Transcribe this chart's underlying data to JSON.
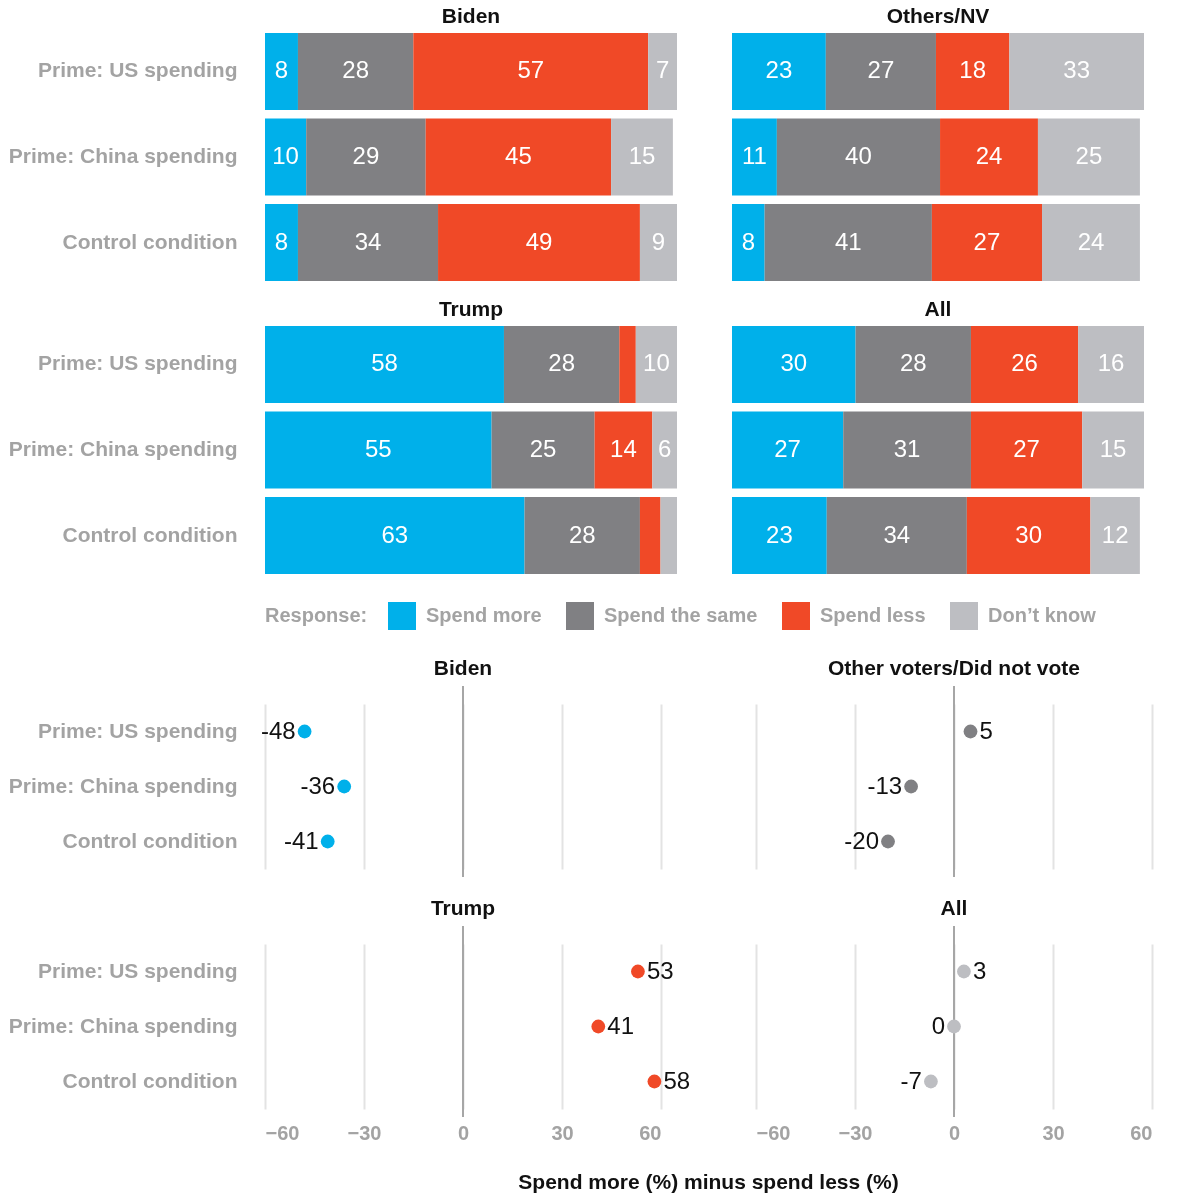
{
  "chart_data": [
    {
      "type": "bar",
      "title": "Biden",
      "orientation": "horizontal",
      "stacked": true,
      "categories": [
        "Prime: US spending",
        "Prime: China spending",
        "Control condition"
      ],
      "xlim": [
        0,
        100
      ],
      "tick_labels": "y",
      "legend": "bottom",
      "legend_title": "Response:",
      "data_labels": true,
      "series": [
        {
          "name": "Spend more",
          "color": "#00b0ea",
          "values": [
            8,
            10,
            8
          ]
        },
        {
          "name": "Spend the same",
          "color": "#808083",
          "values": [
            28,
            29,
            34
          ]
        },
        {
          "name": "Spend less",
          "color": "#f04927",
          "values": [
            57,
            45,
            49
          ]
        },
        {
          "name": "Don’t know",
          "color": "#bdbec2",
          "values": [
            7,
            15,
            9
          ]
        }
      ]
    },
    {
      "type": "bar",
      "title": "Others/NV",
      "orientation": "horizontal",
      "stacked": true,
      "categories": [
        "Prime: US spending",
        "Prime: China spending",
        "Control condition"
      ],
      "xlim": [
        0,
        101
      ],
      "tick_labels": false,
      "data_labels": true,
      "series": [
        {
          "name": "Spend more",
          "color": "#00b0ea",
          "values": [
            23,
            11,
            8
          ]
        },
        {
          "name": "Spend the same",
          "color": "#808083",
          "values": [
            27,
            40,
            41
          ]
        },
        {
          "name": "Spend less",
          "color": "#f04927",
          "values": [
            18,
            24,
            27
          ]
        },
        {
          "name": "Don’t know",
          "color": "#bdbec2",
          "values": [
            33,
            25,
            24
          ]
        }
      ]
    },
    {
      "type": "bar",
      "title": "Trump",
      "orientation": "horizontal",
      "stacked": true,
      "categories": [
        "Prime: US spending",
        "Prime: China spending",
        "Control condition"
      ],
      "xlim": [
        0,
        100
      ],
      "tick_labels": "y",
      "series": [
        {
          "name": "Spend more",
          "color": "#00b0ea",
          "values": [
            58,
            55,
            63
          ],
          "value_labels": [
            "58",
            "55",
            "63"
          ]
        },
        {
          "name": "Spend the same",
          "color": "#808083",
          "values": [
            28,
            25,
            28
          ],
          "value_labels": [
            "28",
            "25",
            "28"
          ]
        },
        {
          "name": "Spend less",
          "color": "#f04927",
          "values": [
            4,
            14,
            5
          ],
          "value_labels": [
            null,
            "14",
            null
          ]
        },
        {
          "name": "Don’t know",
          "color": "#bdbec2",
          "values": [
            10,
            6,
            4
          ],
          "value_labels": [
            "10",
            "6",
            null
          ]
        }
      ]
    },
    {
      "type": "bar",
      "title": "All",
      "orientation": "horizontal",
      "stacked": true,
      "categories": [
        "Prime: US spending",
        "Prime: China spending",
        "Control condition"
      ],
      "xlim": [
        0,
        100
      ],
      "tick_labels": false,
      "data_labels": true,
      "series": [
        {
          "name": "Spend more",
          "color": "#00b0ea",
          "values": [
            30,
            27,
            23
          ]
        },
        {
          "name": "Spend the same",
          "color": "#808083",
          "values": [
            28,
            31,
            34
          ]
        },
        {
          "name": "Spend less",
          "color": "#f04927",
          "values": [
            26,
            27,
            30
          ]
        },
        {
          "name": "Don’t know",
          "color": "#bdbec2",
          "values": [
            16,
            15,
            12
          ]
        }
      ]
    },
    {
      "type": "scatter",
      "title": "Biden",
      "orientation": "horizontal",
      "categories": [
        "Prime: US spending",
        "Prime: China spending",
        "Control condition"
      ],
      "values": [
        -48,
        -36,
        -41
      ],
      "color": "#00b0ea",
      "xlim": [
        -60,
        60
      ],
      "xticks": [
        -60,
        -30,
        0,
        30,
        60
      ],
      "grid": "x",
      "tick_labels": "y",
      "marker": "circle",
      "data_labels": true,
      "ref_lines": [
        {
          "axis": "x",
          "value": 0,
          "color": "#a6a6a6"
        }
      ]
    },
    {
      "type": "scatter",
      "title": "Other voters/Did not vote",
      "orientation": "horizontal",
      "categories": [
        "Prime: US spending",
        "Prime: China spending",
        "Control condition"
      ],
      "values": [
        5,
        -13,
        -20
      ],
      "color": "#808083",
      "xlim": [
        -60,
        60
      ],
      "xticks": [
        -60,
        -30,
        0,
        30,
        60
      ],
      "grid": "x",
      "tick_labels": false,
      "marker": "circle",
      "data_labels": true,
      "ref_lines": [
        {
          "axis": "x",
          "value": 0,
          "color": "#a6a6a6"
        }
      ]
    },
    {
      "type": "scatter",
      "title": "Trump",
      "orientation": "horizontal",
      "categories": [
        "Prime: US spending",
        "Prime: China spending",
        "Control condition"
      ],
      "values": [
        53,
        41,
        58
      ],
      "color": "#f04927",
      "xlim": [
        -60,
        60
      ],
      "xticks": [
        -60,
        -30,
        0,
        30,
        60
      ],
      "grid": "x",
      "marker": "circle",
      "data_labels": true,
      "xlabel": "Spend more (%) minus spend less (%)",
      "ref_lines": [
        {
          "axis": "x",
          "value": 0,
          "color": "#a6a6a6"
        }
      ]
    },
    {
      "type": "scatter",
      "title": "All",
      "orientation": "horizontal",
      "categories": [
        "Prime: US spending",
        "Prime: China spending",
        "Control condition"
      ],
      "values": [
        3,
        0,
        -7
      ],
      "color": "#bdbec2",
      "xlim": [
        -60,
        60
      ],
      "xticks": [
        -60,
        -30,
        0,
        30,
        60
      ],
      "grid": "x",
      "tick_labels": "x",
      "marker": "circle",
      "data_labels": true,
      "ref_lines": [
        {
          "axis": "x",
          "value": 0,
          "color": "#a6a6a6"
        }
      ]
    }
  ]
}
